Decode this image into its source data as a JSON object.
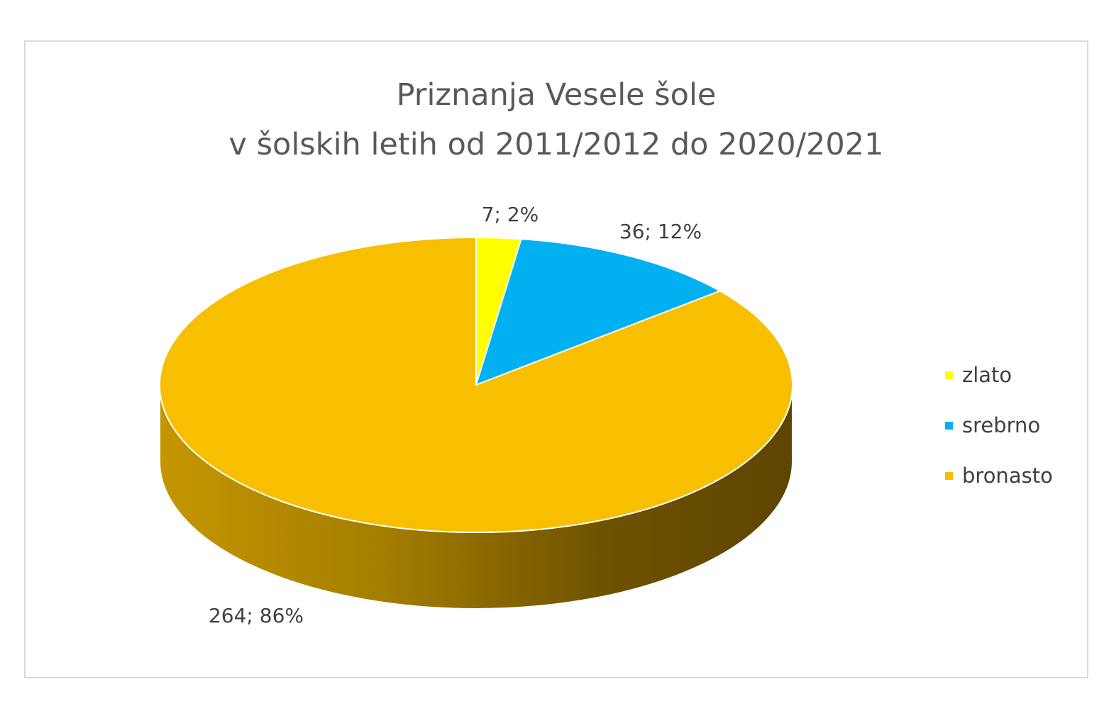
{
  "chart_data": {
    "type": "pie",
    "title": [
      "Priznanja Vesele šole",
      "v šolskih letih od 2011/2012 do 2020/2021"
    ],
    "slices": [
      {
        "name": "zlato",
        "value": 7,
        "percent": "2%",
        "label": "7; 2%",
        "color": "#FFFF00"
      },
      {
        "name": "srebrno",
        "value": 36,
        "percent": "12%",
        "label": "36; 12%",
        "color": "#00B0F0"
      },
      {
        "name": "bronasto",
        "value": 264,
        "percent": "86%",
        "label": "264; 86%",
        "color": "#F8BE00"
      }
    ],
    "legend_position": "right",
    "style": "3d"
  }
}
